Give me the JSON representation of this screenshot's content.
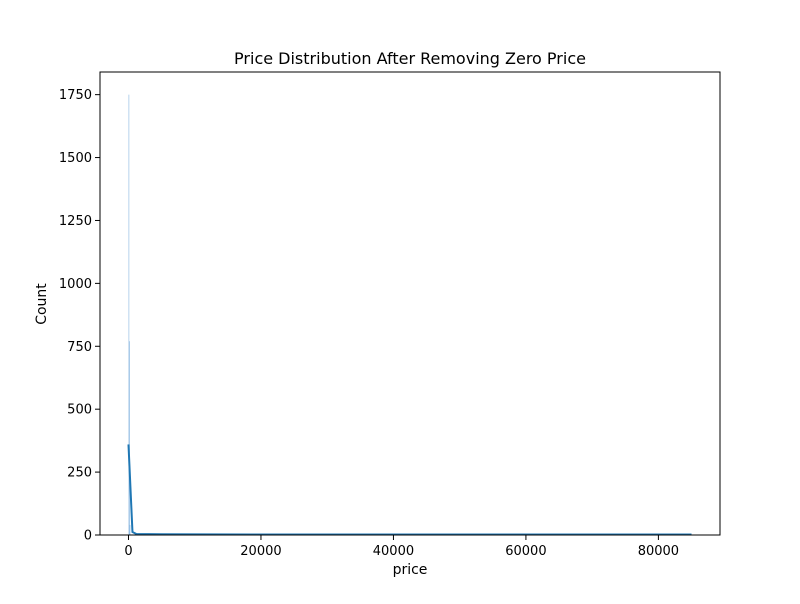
{
  "colors": {
    "bar_fill": "#5b9bd5",
    "kde_line": "#1f77b4",
    "axis": "#000000",
    "background": "#ffffff"
  },
  "chart_data": {
    "type": "bar",
    "title": "Price Distribution After Removing Zero Price",
    "xlabel": "price",
    "ylabel": "Count",
    "xlim": [
      -4300,
      89300
    ],
    "ylim": [
      0,
      1840
    ],
    "xticks": [
      0,
      20000,
      40000,
      60000,
      80000
    ],
    "xtick_labels": [
      "0",
      "20000",
      "40000",
      "60000",
      "80000"
    ],
    "yticks": [
      0,
      250,
      500,
      750,
      1000,
      1250,
      1500,
      1750
    ],
    "ytick_labels": [
      "0",
      "250",
      "500",
      "750",
      "1000",
      "1250",
      "1500",
      "1750"
    ],
    "grid": false,
    "histogram": {
      "bin_edges": [
        0,
        85,
        170,
        255
      ],
      "counts": [
        1750,
        770,
        40
      ]
    },
    "kde": {
      "x": [
        0,
        600,
        1200,
        5000,
        20000,
        40000,
        60000,
        80000,
        85000
      ],
      "y": [
        360,
        12,
        4,
        3,
        2,
        2,
        2,
        2,
        2
      ]
    }
  }
}
